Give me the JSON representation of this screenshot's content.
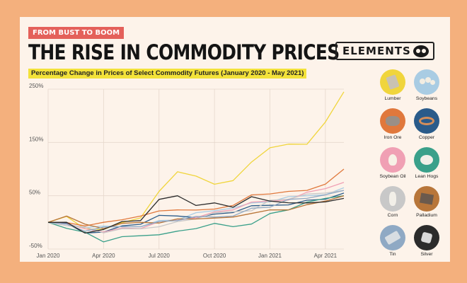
{
  "header": {
    "badge": "FROM BUST TO BOOM",
    "title": "THE RISE IN COMMODITY PRICES",
    "subtitle": "Percentage Change in Prices of Select Commodity Futures (January 2020 - May 2021)",
    "logo_text": "ELEMENTS",
    "logo_icon": "goggles-icon"
  },
  "chart_data": {
    "type": "line",
    "title": "THE RISE IN COMMODITY PRICES",
    "subtitle": "Percentage Change in Prices of Select Commodity Futures (January 2020 - May 2021)",
    "xlabel": "",
    "ylabel": "",
    "ylim": [
      -50,
      250
    ],
    "yticks": [
      250,
      150,
      50,
      -50
    ],
    "ytick_labels": [
      "250%",
      "150%",
      "50%",
      "-50%"
    ],
    "x": [
      "2020-01",
      "2020-02",
      "2020-03",
      "2020-04",
      "2020-05",
      "2020-06",
      "2020-07",
      "2020-08",
      "2020-09",
      "2020-10",
      "2020-11",
      "2020-12",
      "2021-01",
      "2021-02",
      "2021-03",
      "2021-04",
      "2021-05"
    ],
    "xticks": [
      "2020-01",
      "2020-04",
      "2020-07",
      "2020-10",
      "2021-01",
      "2021-04"
    ],
    "xtick_labels": [
      "Jan 2020",
      "Apr 2020",
      "Jul 2020",
      "Oct 2020",
      "Jan 2021",
      "Apr 2021"
    ],
    "grid": true,
    "legend_position": "right",
    "series": [
      {
        "name": "Lumber",
        "color": "#f0d53c",
        "values": [
          0,
          8,
          -12,
          -10,
          -2,
          10,
          55,
          95,
          90,
          70,
          80,
          110,
          140,
          150,
          145,
          190,
          245
        ]
      },
      {
        "name": "Soybeans",
        "color": "#a9cce3",
        "values": [
          0,
          -5,
          -8,
          -10,
          -8,
          -5,
          2,
          6,
          15,
          22,
          30,
          35,
          40,
          45,
          50,
          55,
          65
        ]
      },
      {
        "name": "Iron Ore",
        "color": "#e0783c",
        "values": [
          0,
          -2,
          -5,
          -3,
          5,
          15,
          20,
          25,
          20,
          25,
          35,
          50,
          55,
          55,
          60,
          75,
          100
        ]
      },
      {
        "name": "Copper",
        "color": "#2a5b8a",
        "values": [
          0,
          -5,
          -20,
          -15,
          -8,
          -2,
          10,
          12,
          12,
          14,
          20,
          28,
          32,
          36,
          40,
          45,
          55
        ]
      },
      {
        "name": "Soybean Oil",
        "color": "#f0a0b4",
        "values": [
          0,
          -6,
          -12,
          -15,
          -12,
          -10,
          -2,
          4,
          12,
          18,
          25,
          35,
          40,
          45,
          55,
          65,
          75
        ]
      },
      {
        "name": "Lean Hogs",
        "color": "#3aa08a",
        "values": [
          0,
          -8,
          -20,
          -35,
          -30,
          -25,
          -20,
          -18,
          -10,
          -5,
          -8,
          0,
          15,
          25,
          35,
          45,
          50
        ]
      },
      {
        "name": "Corn",
        "color": "#c8c8c8",
        "values": [
          0,
          -3,
          -10,
          -18,
          -15,
          -12,
          -5,
          0,
          8,
          15,
          20,
          25,
          40,
          45,
          50,
          55,
          60
        ]
      },
      {
        "name": "Palladium",
        "color": "#b8763a",
        "values": [
          0,
          15,
          -5,
          -10,
          -5,
          0,
          2,
          5,
          8,
          5,
          10,
          20,
          22,
          25,
          30,
          40,
          50
        ]
      },
      {
        "name": "Tin",
        "color": "#8fa9c4",
        "values": [
          0,
          -5,
          -15,
          -12,
          -8,
          -5,
          0,
          5,
          8,
          10,
          15,
          25,
          30,
          40,
          45,
          55,
          60
        ]
      },
      {
        "name": "Silver",
        "color": "#2b2b2b",
        "values": [
          0,
          -3,
          -20,
          -10,
          0,
          5,
          40,
          50,
          35,
          35,
          30,
          45,
          40,
          40,
          35,
          40,
          45
        ]
      }
    ]
  },
  "legend": [
    {
      "label": "Lumber",
      "icon": "lumber-icon",
      "bg": "#f0d53c"
    },
    {
      "label": "Soybeans",
      "icon": "soybeans-icon",
      "bg": "#a9cce3"
    },
    {
      "label": "Iron Ore",
      "icon": "iron-ore-icon",
      "bg": "#e0783c"
    },
    {
      "label": "Copper",
      "icon": "copper-icon",
      "bg": "#2a5b8a"
    },
    {
      "label": "Soybean Oil",
      "icon": "soybean-oil-icon",
      "bg": "#f0a0b4"
    },
    {
      "label": "Lean Hogs",
      "icon": "lean-hogs-icon",
      "bg": "#3aa08a"
    },
    {
      "label": "Corn",
      "icon": "corn-icon",
      "bg": "#c8c8c8"
    },
    {
      "label": "Palladium",
      "icon": "palladium-icon",
      "bg": "#b8763a"
    },
    {
      "label": "Tin",
      "icon": "tin-icon",
      "bg": "#8fa9c4"
    },
    {
      "label": "Silver",
      "icon": "silver-icon",
      "bg": "#2b2b2b"
    }
  ]
}
